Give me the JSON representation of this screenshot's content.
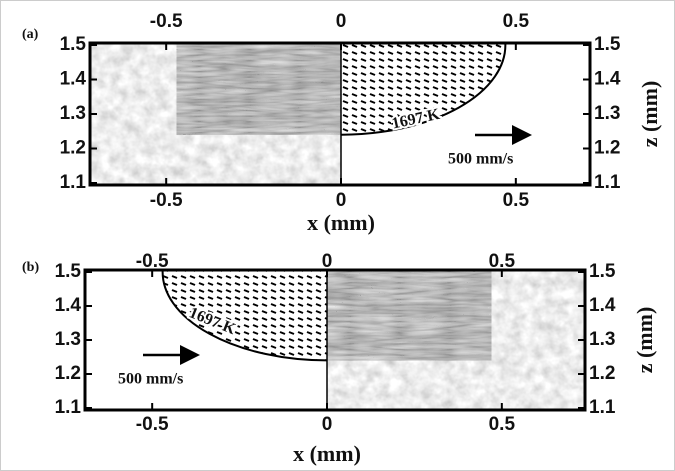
{
  "panels": [
    {
      "label": "(a)",
      "x_ticks": [
        -0.5,
        0,
        0.5
      ],
      "y_ticks": [
        1.1,
        1.2,
        1.3,
        1.4,
        1.5
      ],
      "x_axis_label": "x (mm)",
      "y_axis_label": "z (mm)",
      "isotherm_label": "1697 K",
      "velocity_label": "500 mm/s"
    },
    {
      "label": "(b)",
      "x_ticks": [
        -0.5,
        0,
        0.5
      ],
      "y_ticks": [
        1.1,
        1.2,
        1.3,
        1.4,
        1.5
      ],
      "x_axis_label": "x (mm)",
      "y_axis_label": "z (mm)",
      "isotherm_label": "1697 K",
      "velocity_label": "500 mm/s"
    }
  ]
}
